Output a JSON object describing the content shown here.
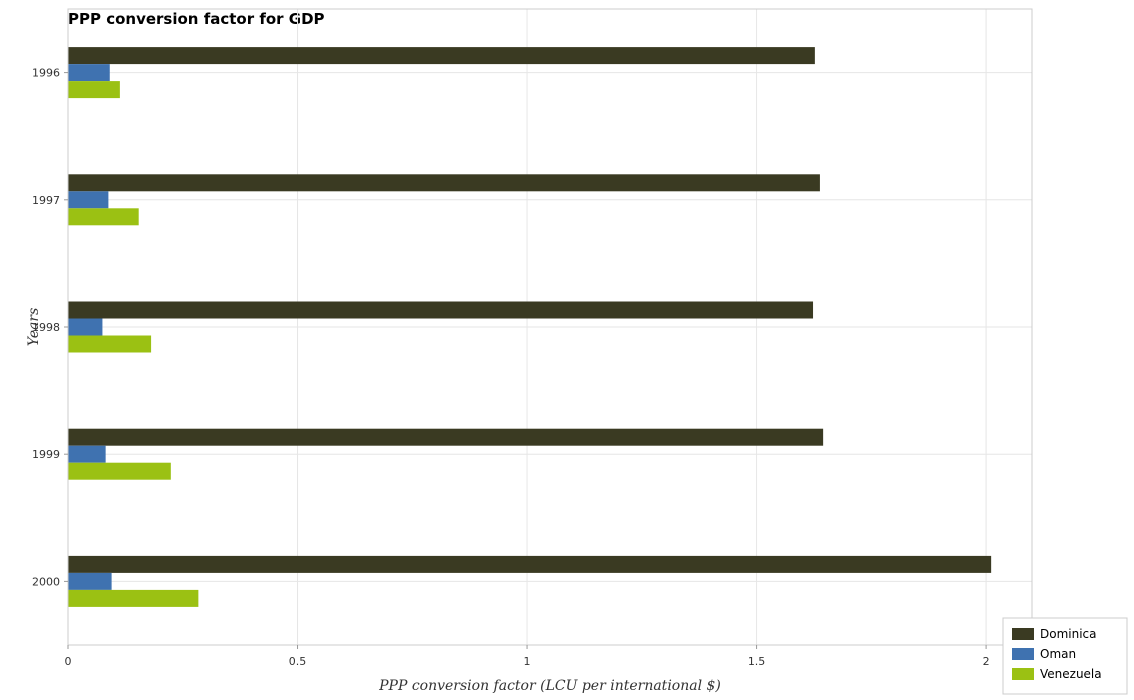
{
  "chart_data": {
    "type": "bar",
    "orientation": "horizontal",
    "title": "PPP conversion factor for GDP",
    "xlabel": "PPP conversion factor (LCU per international $)",
    "ylabel": "Years",
    "categories": [
      "1996",
      "1997",
      "1998",
      "1999",
      "2000"
    ],
    "xlim": [
      0,
      2.1
    ],
    "xticks": [
      0,
      0.5,
      1,
      1.5,
      2
    ],
    "xtick_labels": [
      "0",
      "0.5",
      "1",
      "1.5",
      "2"
    ],
    "series": [
      {
        "name": "Dominica",
        "color": "#3a3a22",
        "values": [
          1.627,
          1.638,
          1.623,
          1.645,
          2.011
        ]
      },
      {
        "name": "Oman",
        "color": "#3f72b0",
        "values": [
          0.091,
          0.088,
          0.075,
          0.082,
          0.095
        ]
      },
      {
        "name": "Venezuela",
        "color": "#9bc113",
        "values": [
          0.113,
          0.154,
          0.181,
          0.224,
          0.284
        ]
      }
    ],
    "grid": true,
    "legend_position": "bottom-right"
  }
}
